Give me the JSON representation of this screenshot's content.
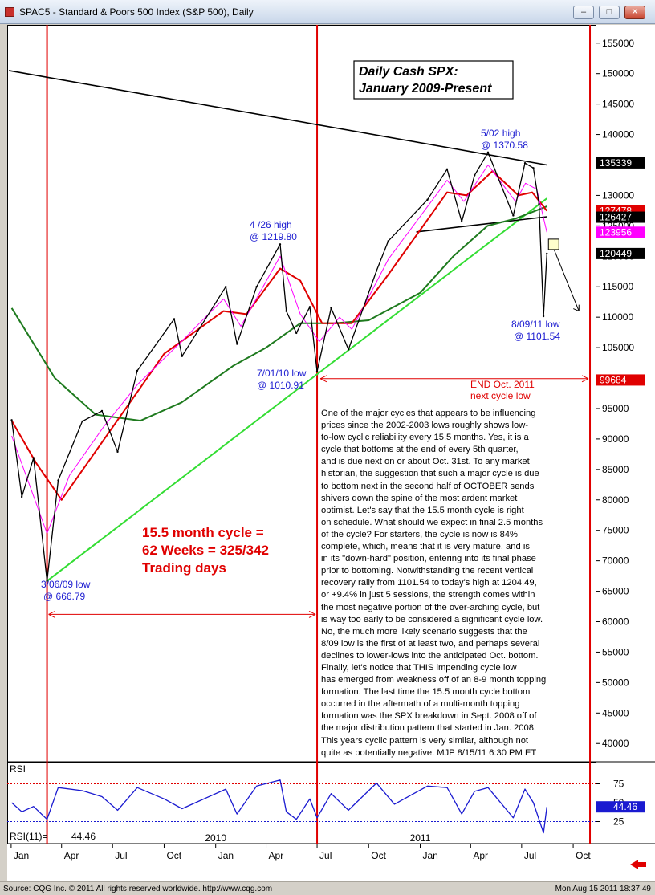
{
  "window": {
    "title": "SPAC5 - Standard & Poors 500 Index (S&P 500), Daily",
    "buttons": {
      "minimize": "–",
      "maximize": "□",
      "close": "✕"
    }
  },
  "footer": {
    "source": "Source: CQG Inc. © 2011 All rights reserved worldwide. http://www.cqg.com",
    "timestamp": "Mon Aug 15 2011 18:37:49"
  },
  "chart_data": [
    {
      "type": "line",
      "panel": "price",
      "title": "Daily Cash SPX:",
      "subtitle": "January 2009-Present",
      "ylim": [
        37000,
        158000
      ],
      "y_ticks": [
        40000,
        45000,
        50000,
        55000,
        60000,
        65000,
        70000,
        75000,
        80000,
        85000,
        90000,
        95000,
        100000,
        105000,
        110000,
        115000,
        120000,
        125000,
        130000,
        135000,
        140000,
        145000,
        150000,
        155000
      ],
      "x_ticks": [
        "Jan",
        "Apr",
        "Jul",
        "Oct",
        "Jan",
        "Apr",
        "Jul",
        "Oct",
        "Jan",
        "Apr",
        "Jul",
        "Oct"
      ],
      "year_labels": [
        "2010",
        "2011"
      ],
      "price_tags": [
        {
          "value": 135339,
          "label": "135339",
          "color": "#000000",
          "text_color": "#ffffff"
        },
        {
          "value": 127478,
          "label": "127478",
          "color": "#e00000",
          "text_color": "#ffffff"
        },
        {
          "value": 126427,
          "label": "126427",
          "color": "#000000",
          "text_color": "#ffffff"
        },
        {
          "value": 123956,
          "label": "123956",
          "color": "#ff00ff",
          "text_color": "#ffffff"
        },
        {
          "value": 120449,
          "label": "120449",
          "color": "#000000",
          "text_color": "#ffffff"
        },
        {
          "value": 99684,
          "label": "99684",
          "color": "#e00000",
          "text_color": "#ffffff"
        }
      ],
      "series": [
        {
          "name": "SPX",
          "color": "#000000",
          "x": [
            "2009-01-02",
            "2009-01-20",
            "2009-02-10",
            "2009-03-06",
            "2009-03-26",
            "2009-05-08",
            "2009-06-12",
            "2009-07-10",
            "2009-08-14",
            "2009-10-19",
            "2009-11-02",
            "2010-01-19",
            "2010-02-08",
            "2010-03-15",
            "2010-04-26",
            "2010-05-07",
            "2010-05-25",
            "2010-06-18",
            "2010-07-01",
            "2010-07-26",
            "2010-08-26",
            "2010-10-15",
            "2010-11-05",
            "2011-01-14",
            "2011-02-18",
            "2011-03-16",
            "2011-04-08",
            "2011-05-02",
            "2011-06-16",
            "2011-07-07",
            "2011-07-22",
            "2011-08-01",
            "2011-08-09",
            "2011-08-15"
          ],
          "values": [
            931,
            805,
            869,
            666.79,
            832,
            929,
            946,
            879,
            1012,
            1097,
            1036,
            1150,
            1056,
            1150,
            1219.8,
            1110,
            1074,
            1117,
            1010.91,
            1115,
            1047,
            1176,
            1225,
            1293,
            1343,
            1257,
            1333,
            1370.58,
            1267,
            1353,
            1345,
            1286,
            1101.54,
            1204.49
          ]
        },
        {
          "name": "",
          "color": "#ff00ff",
          "x": [
            "2009-01-02",
            "2009-03-06",
            "2009-04-15",
            "2009-06-15",
            "2009-08-15",
            "2009-11-01",
            "2010-01-15",
            "2010-02-15",
            "2010-04-26",
            "2010-06-01",
            "2010-07-05",
            "2010-08-10",
            "2010-09-01",
            "2010-11-05",
            "2011-02-18",
            "2011-03-20",
            "2011-05-02",
            "2011-06-20",
            "2011-07-08",
            "2011-07-28",
            "2011-08-15"
          ],
          "values": [
            905,
            745,
            840,
            920,
            990,
            1060,
            1130,
            1085,
            1200,
            1105,
            1060,
            1100,
            1080,
            1195,
            1325,
            1290,
            1350,
            1290,
            1320,
            1310,
            1239.56
          ]
        },
        {
          "name": "",
          "color": "#e00000",
          "x": [
            "2009-01-02",
            "2009-02-15",
            "2009-04-01",
            "2009-06-01",
            "2009-08-01",
            "2009-10-01",
            "2010-01-15",
            "2010-02-25",
            "2010-04-26",
            "2010-06-01",
            "2010-07-10",
            "2010-09-01",
            "2010-11-05",
            "2011-02-18",
            "2011-03-25",
            "2011-05-10",
            "2011-06-25",
            "2011-07-20",
            "2011-08-15"
          ],
          "values": [
            930,
            860,
            800,
            880,
            960,
            1040,
            1110,
            1105,
            1180,
            1160,
            1090,
            1090,
            1170,
            1305,
            1300,
            1340,
            1300,
            1305,
            1274.78
          ]
        },
        {
          "name": "",
          "color": "#1e7a1e",
          "x": [
            "2009-01-02",
            "2009-03-20",
            "2009-06-01",
            "2009-08-20",
            "2009-11-01",
            "2010-02-01",
            "2010-04-01",
            "2010-06-01",
            "2010-08-01",
            "2010-10-01",
            "2011-01-01",
            "2011-03-01",
            "2011-05-01",
            "2011-06-20",
            "2011-08-15"
          ],
          "values": [
            1115,
            1000,
            940,
            930,
            960,
            1020,
            1050,
            1090,
            1090,
            1095,
            1140,
            1200,
            1250,
            1262,
            1282
          ]
        }
      ],
      "trendlines": [
        {
          "label": "downtrend",
          "color": "#000000",
          "x": [
            "2008-12-28",
            "2011-08-15"
          ],
          "values": [
            1505,
            1350
          ]
        },
        {
          "label": "uptrend",
          "color": "#33dd33",
          "x": [
            "2009-03-06",
            "2011-08-15"
          ],
          "values": [
            666.79,
            1295
          ]
        },
        {
          "label": "neckline",
          "color": "#000000",
          "x": [
            "2010-12-25",
            "2011-08-15"
          ],
          "values": [
            1240,
            1265
          ]
        }
      ],
      "cycle_lines": {
        "color": "#e00000",
        "x": [
          "2009-03-06",
          "2010-07-01",
          "2011-10-31"
        ]
      },
      "annotations": [
        {
          "text": "5/02 high",
          "color": "#1a1ad0"
        },
        {
          "text": "@ 1370.58",
          "color": "#1a1ad0"
        },
        {
          "text": "4 /26 high",
          "color": "#1a1ad0"
        },
        {
          "text": "@ 1219.80",
          "color": "#1a1ad0"
        },
        {
          "text": "7/01/10 low",
          "color": "#1a1ad0"
        },
        {
          "text": "@ 1010.91",
          "color": "#1a1ad0"
        },
        {
          "text": "8/09/11 low",
          "color": "#1a1ad0"
        },
        {
          "text": "@ 1101.54",
          "color": "#1a1ad0"
        },
        {
          "text": "3/06/09 low",
          "color": "#1a1ad0"
        },
        {
          "text": "@ 666.79",
          "color": "#1a1ad0"
        },
        {
          "text": "END Oct. 2011",
          "color": "#e00000"
        },
        {
          "text": "next cycle low",
          "color": "#e00000"
        },
        {
          "text": "15.5 month cycle =",
          "color": "#e00000"
        },
        {
          "text": "62 Weeks = 325/342",
          "color": "#e00000"
        },
        {
          "text": "Trading days",
          "color": "#e00000"
        }
      ],
      "commentary": "One of the major cycles that appears to be influencing\nprices since the 2002-2003 lows roughly shows low-\nto-low cyclic reliability every 15.5 months. Yes, it is a\ncycle that bottoms at the end of every 5th quarter,\nand is due next on or about Oct. 31st. To any market\nhistorian, the suggestion that such a major cycle is due\nto bottom next in the second half of OCTOBER sends\nshivers down the spine of the most ardent market\noptimist.  Let's say that the 15.5 month cycle is right\non schedule. What should we expect in final 2.5 months\nof the cycle? For starters, the cycle is now is 84%\ncomplete, which, means that it is very mature, and is\nin its \"down-hard\" position, entering into its final phase\nprior to bottoming.  Notwithstanding the recent vertical\nrecovery rally from 1101.54 to today's high at 1204.49,\nor +9.4% in just 5 sessions, the strength comes within\nthe most negative portion of the over-arching cycle, but\nis way too early to be considered a significant cycle low.\nNo, the much more likely scenario suggests that the\n8/09 low is the first of at least two, and perhaps several\ndeclines to lower-lows into the anticipated Oct. bottom.\nFinally, let's notice that THIS impending cycle low\nhas emerged from weakness off of an 8-9 month topping\nformation. The last time the 15.5 month cycle bottom\noccurred in the aftermath of a multi-month topping\nformation was the SPX breakdown in Sept. 2008 off of\nthe major distribution pattern that started in Jan. 2008.\nThis years cyclic pattern is very similar, although not\nquite as potentially negative.  MJP  8/15/11 6:30 PM ET"
    },
    {
      "type": "line",
      "panel": "RSI",
      "title": "RSI",
      "reading_label": "RSI(11)=",
      "reading_value": "44.46",
      "tag": {
        "value": 44.46,
        "label": "44.46",
        "color": "#1a1ad0"
      },
      "ylim": [
        0,
        100
      ],
      "y_ticks": [
        25,
        50,
        75
      ],
      "levels": [
        75,
        25
      ],
      "series": [
        {
          "name": "RSI(11)",
          "color": "#1a1ad0",
          "x": [
            "2009-01-02",
            "2009-01-20",
            "2009-02-10",
            "2009-03-06",
            "2009-03-26",
            "2009-05-08",
            "2009-06-12",
            "2009-07-10",
            "2009-08-14",
            "2009-10-01",
            "2009-11-02",
            "2010-01-19",
            "2010-02-08",
            "2010-03-15",
            "2010-04-26",
            "2010-05-07",
            "2010-05-25",
            "2010-06-18",
            "2010-07-01",
            "2010-07-26",
            "2010-08-26",
            "2010-10-15",
            "2010-11-16",
            "2011-01-14",
            "2011-02-18",
            "2011-03-16",
            "2011-04-08",
            "2011-05-02",
            "2011-06-16",
            "2011-07-07",
            "2011-07-22",
            "2011-08-09",
            "2011-08-15"
          ],
          "values": [
            50,
            38,
            45,
            28,
            70,
            66,
            58,
            40,
            70,
            55,
            42,
            68,
            35,
            72,
            80,
            38,
            28,
            55,
            30,
            62,
            40,
            76,
            48,
            72,
            70,
            35,
            65,
            70,
            30,
            68,
            50,
            10,
            44.46
          ]
        }
      ]
    }
  ]
}
